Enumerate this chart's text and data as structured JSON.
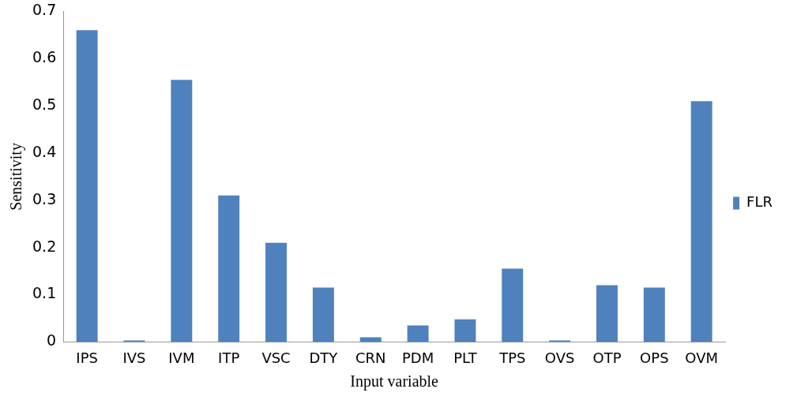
{
  "chart_data": {
    "type": "bar",
    "xlabel": "Input variable",
    "ylabel": "Sensitivity",
    "categories": [
      "IPS",
      "IVS",
      "IVM",
      "ITP",
      "VSC",
      "DTY",
      "CRN",
      "PDM",
      "PLT",
      "TPS",
      "OVS",
      "OTP",
      "OPS",
      "OVM"
    ],
    "series": [
      {
        "name": "FLR",
        "color": "#4f81bd",
        "values": [
          0.66,
          0.003,
          0.555,
          0.31,
          0.21,
          0.115,
          0.01,
          0.035,
          0.048,
          0.155,
          0.003,
          0.12,
          0.115,
          0.51
        ]
      }
    ],
    "ylim": [
      0,
      0.7
    ],
    "yticks": [
      0,
      0.1,
      0.2,
      0.3,
      0.4,
      0.5,
      0.6,
      0.7
    ],
    "grid": false,
    "legend": "right"
  }
}
